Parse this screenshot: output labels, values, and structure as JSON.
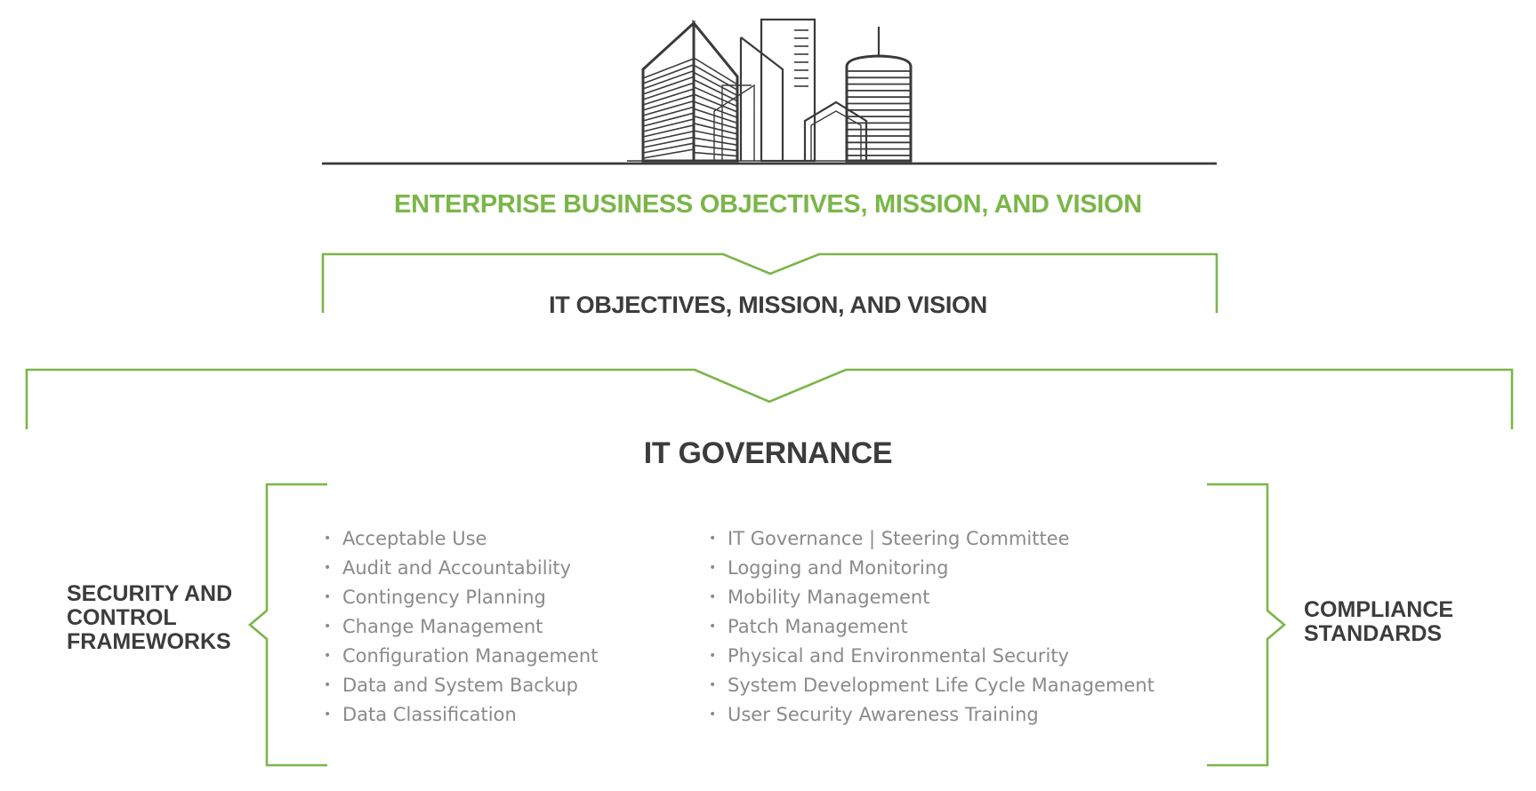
{
  "colors": {
    "accent_green": "#7ab648",
    "dark_text": "#3c3c3c",
    "list_text": "#8a8a8a",
    "illustration": "#3a3a3a"
  },
  "illustration": {
    "icon": "city-buildings-icon"
  },
  "enterprise": {
    "title": "ENTERPRISE BUSINESS OBJECTIVES, MISSION, AND VISION"
  },
  "it_objectives": {
    "title": "IT OBJECTIVES, MISSION, AND VISION"
  },
  "governance": {
    "title": "IT GOVERNANCE",
    "left_label": [
      "SECURITY AND",
      "CONTROL",
      "FRAMEWORKS"
    ],
    "right_label": [
      "COMPLIANCE",
      "STANDARDS"
    ],
    "bullet": "•",
    "list_left": [
      "Acceptable Use",
      "Audit and Accountability",
      "Contingency Planning",
      "Change Management",
      "Configuration Management",
      "Data and System Backup",
      "Data Classification"
    ],
    "list_right": [
      "IT Governance | Steering Committee",
      "Logging and Monitoring",
      "Mobility Management",
      "Patch Management",
      "Physical and Environmental Security",
      "System Development Life Cycle Management",
      "User Security Awareness Training"
    ]
  }
}
